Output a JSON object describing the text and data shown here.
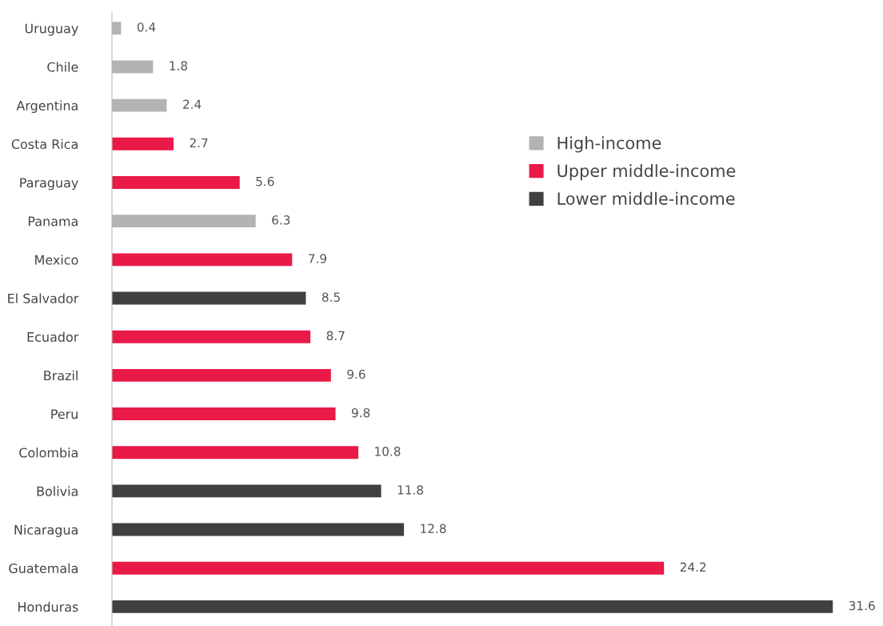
{
  "chart_data": {
    "type": "bar",
    "orientation": "horizontal",
    "data_labels": true,
    "legend": "right",
    "grid": false,
    "categories": [
      "Uruguay",
      "Chile",
      "Argentina",
      "Costa Rica",
      "Paraguay",
      "Panama",
      "Mexico",
      "El Salvador",
      "Ecuador",
      "Brazil",
      "Peru",
      "Colombia",
      "Bolivia",
      "Nicaragua",
      "Guatemala",
      "Honduras"
    ],
    "series": [
      {
        "name": "High-income",
        "color": "#b3b3b6",
        "values": [
          0.4,
          1.8,
          2.4,
          null,
          null,
          6.3,
          null,
          null,
          null,
          null,
          null,
          null,
          null,
          null,
          null,
          null
        ]
      },
      {
        "name": "Upper middle-income",
        "color": "#ea1a48",
        "values": [
          null,
          null,
          null,
          2.7,
          5.6,
          null,
          7.9,
          null,
          8.7,
          9.6,
          9.8,
          10.8,
          null,
          null,
          24.2,
          null
        ]
      },
      {
        "name": "Lower middle-income",
        "color": "#404040",
        "values": [
          null,
          null,
          null,
          null,
          null,
          null,
          null,
          8.5,
          null,
          null,
          null,
          null,
          11.8,
          12.8,
          null,
          31.6
        ]
      }
    ]
  }
}
